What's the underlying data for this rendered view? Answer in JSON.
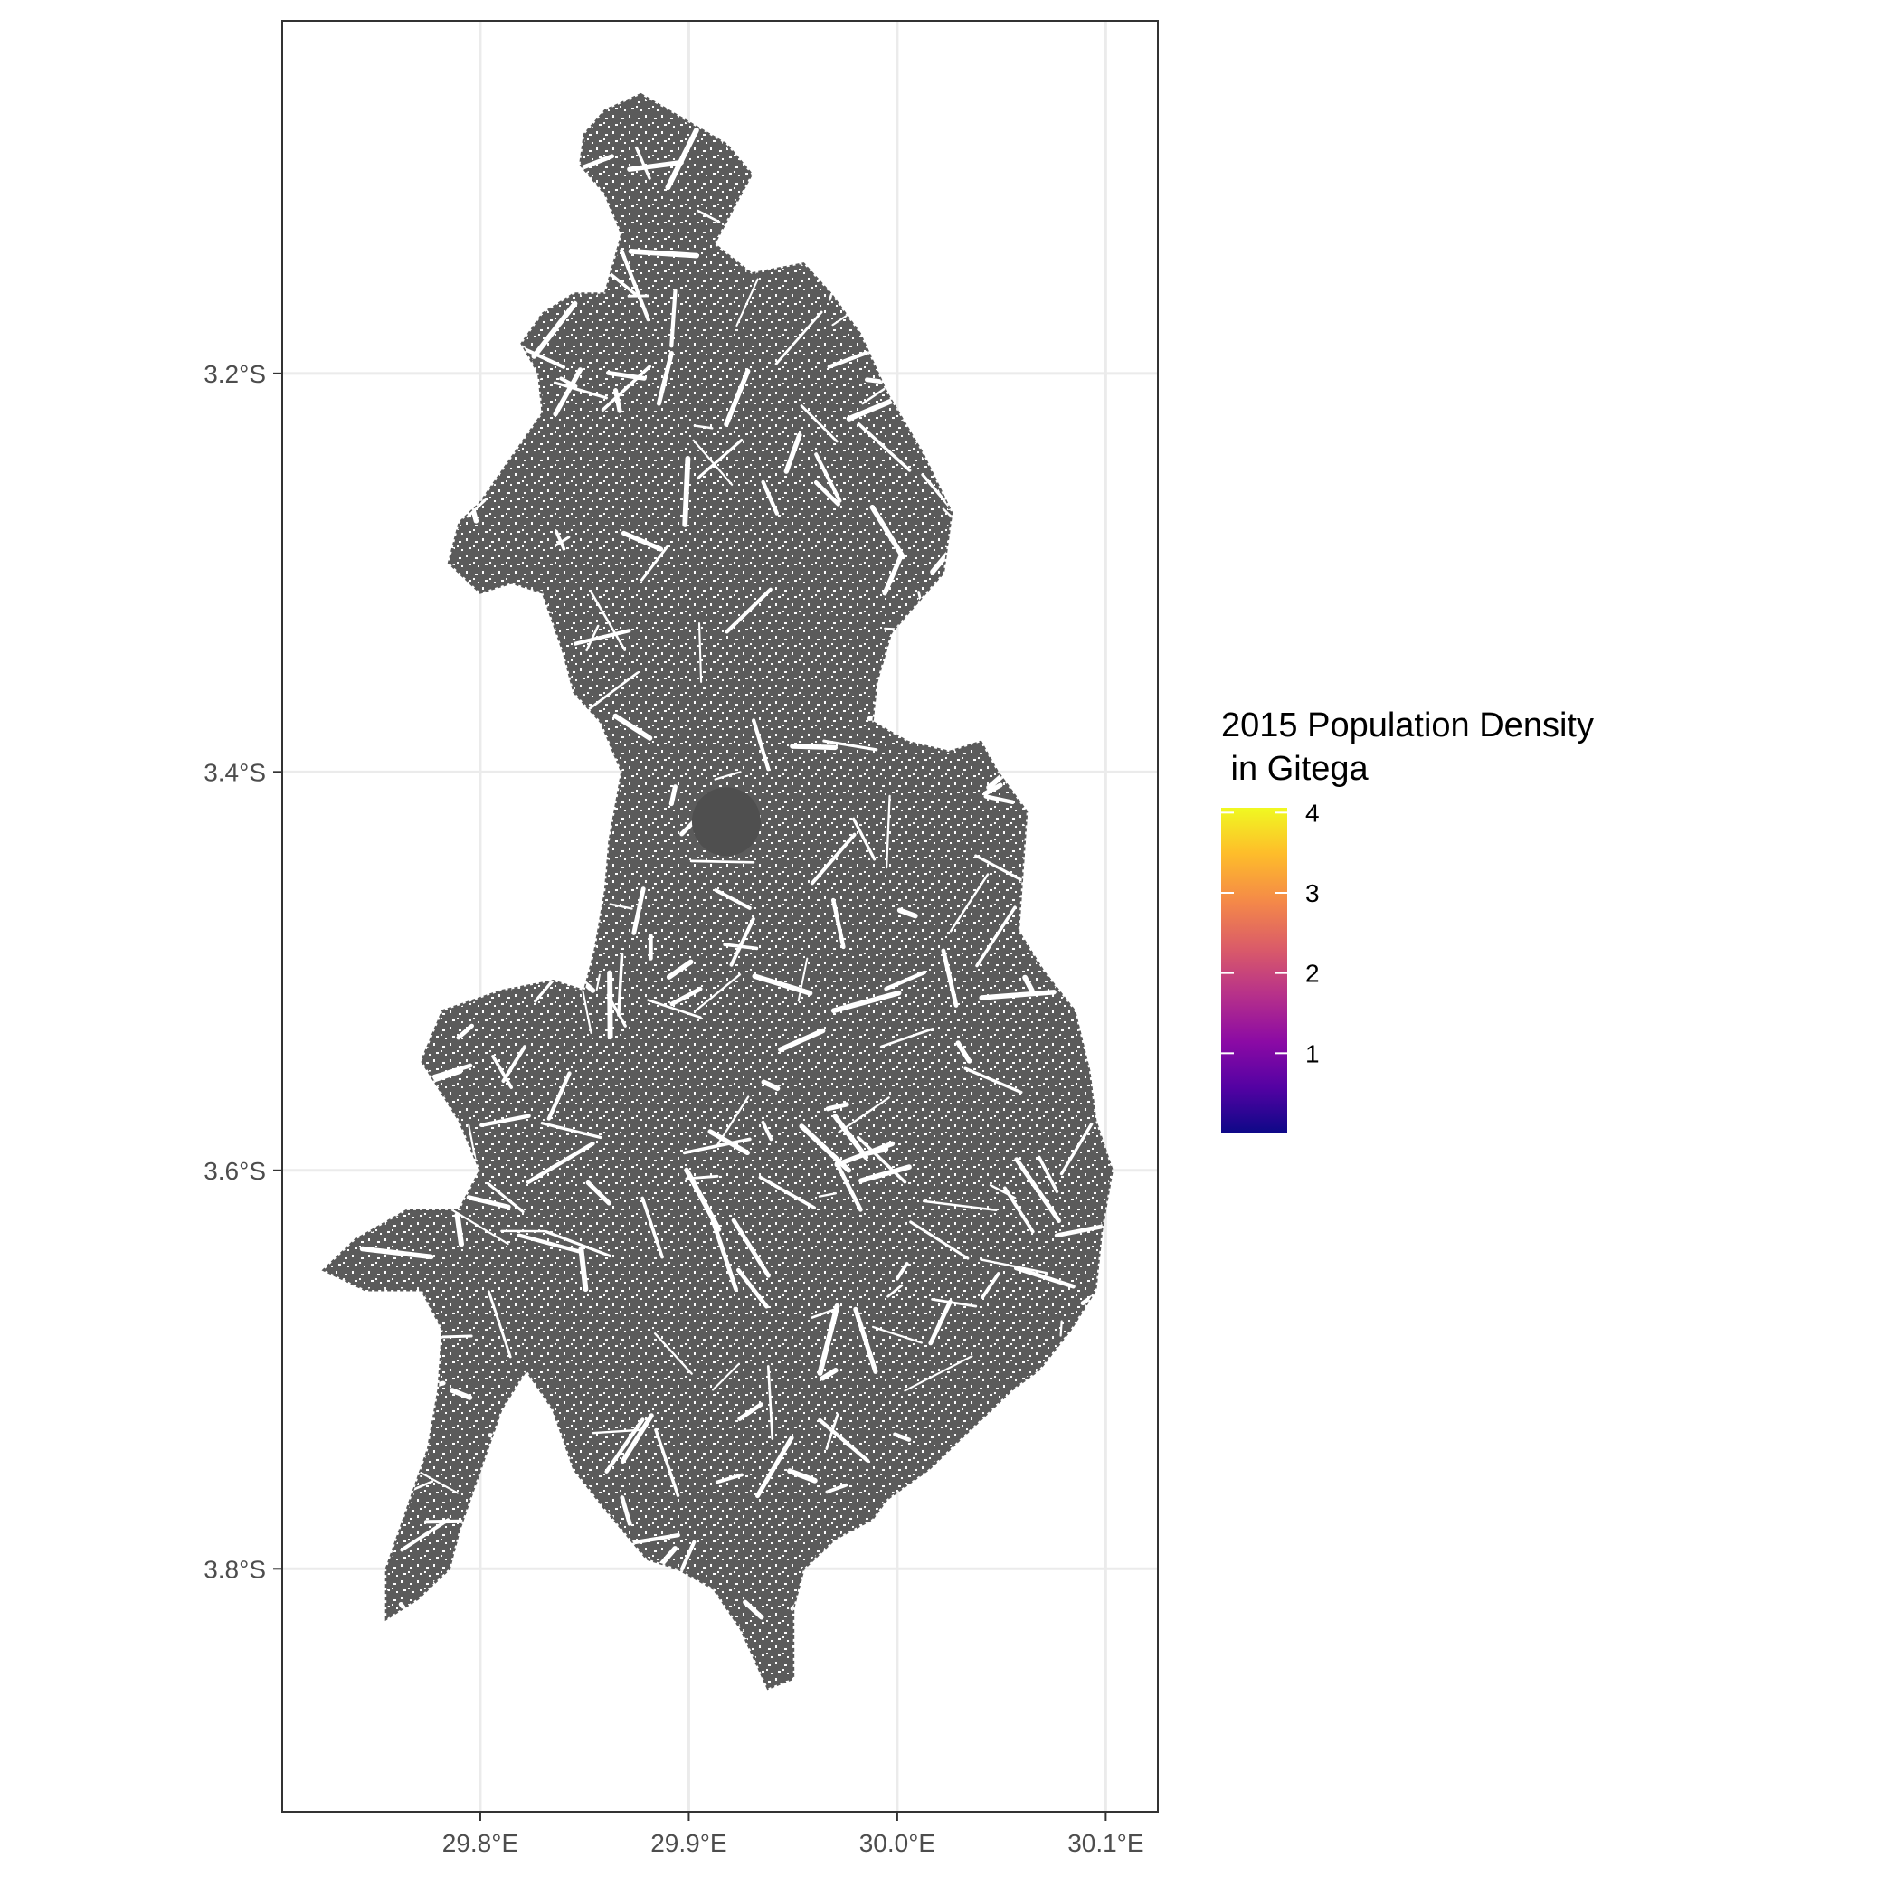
{
  "chart_data": {
    "type": "map",
    "region": "Gitega",
    "x_axis": {
      "ticks": [
        {
          "value": 29.8,
          "label": "29.8°E"
        },
        {
          "value": 29.9,
          "label": "29.9°E"
        },
        {
          "value": 30.0,
          "label": "30.0°E"
        },
        {
          "value": 30.1,
          "label": "30.1°E"
        }
      ],
      "range": [
        29.705,
        30.125
      ]
    },
    "y_axis": {
      "ticks": [
        {
          "value": -3.2,
          "label": "3.2°S"
        },
        {
          "value": -3.4,
          "label": "3.4°S"
        },
        {
          "value": -3.6,
          "label": "3.6°S"
        },
        {
          "value": -3.8,
          "label": "3.8°S"
        }
      ],
      "range": [
        -3.922,
        -3.023
      ]
    },
    "grid": true,
    "legend": {
      "title_line1": "2015 Population Density",
      "title_line2": " in Gitega",
      "placement": "right",
      "scale_min": 0,
      "scale_max": 4.06,
      "ticks": [
        {
          "value": 1,
          "label": "1"
        },
        {
          "value": 2,
          "label": "2"
        },
        {
          "value": 3,
          "label": "3"
        },
        {
          "value": 4,
          "label": "4"
        }
      ],
      "colors": [
        "#0d0887",
        "#5302a3",
        "#8b0aa5",
        "#b83289",
        "#db5c68",
        "#f48849",
        "#febd2a",
        "#f0f921"
      ]
    },
    "fill_color": "#595959",
    "boundary": [
      [
        29.877,
        -3.06
      ],
      [
        29.918,
        -3.085
      ],
      [
        29.93,
        -3.1
      ],
      [
        29.912,
        -3.135
      ],
      [
        29.93,
        -3.15
      ],
      [
        29.955,
        -3.145
      ],
      [
        29.968,
        -3.16
      ],
      [
        29.982,
        -3.18
      ],
      [
        29.995,
        -3.21
      ],
      [
        30.012,
        -3.24
      ],
      [
        30.026,
        -3.27
      ],
      [
        30.022,
        -3.3
      ],
      [
        29.997,
        -3.33
      ],
      [
        29.99,
        -3.355
      ],
      [
        29.988,
        -3.375
      ],
      [
        30.005,
        -3.385
      ],
      [
        30.025,
        -3.39
      ],
      [
        30.04,
        -3.385
      ],
      [
        30.048,
        -3.4
      ],
      [
        30.062,
        -3.42
      ],
      [
        30.06,
        -3.45
      ],
      [
        30.058,
        -3.48
      ],
      [
        30.07,
        -3.5
      ],
      [
        30.085,
        -3.52
      ],
      [
        30.092,
        -3.55
      ],
      [
        30.095,
        -3.575
      ],
      [
        30.103,
        -3.6
      ],
      [
        30.098,
        -3.63
      ],
      [
        30.095,
        -3.66
      ],
      [
        30.083,
        -3.68
      ],
      [
        30.068,
        -3.7
      ],
      [
        30.055,
        -3.71
      ],
      [
        30.035,
        -3.73
      ],
      [
        30.015,
        -3.75
      ],
      [
        29.995,
        -3.765
      ],
      [
        29.988,
        -3.775
      ],
      [
        29.97,
        -3.785
      ],
      [
        29.955,
        -3.8
      ],
      [
        29.95,
        -3.82
      ],
      [
        29.95,
        -3.855
      ],
      [
        29.938,
        -3.86
      ],
      [
        29.925,
        -3.83
      ],
      [
        29.912,
        -3.81
      ],
      [
        29.895,
        -3.8
      ],
      [
        29.88,
        -3.795
      ],
      [
        29.86,
        -3.77
      ],
      [
        29.845,
        -3.75
      ],
      [
        29.835,
        -3.72
      ],
      [
        29.822,
        -3.7
      ],
      [
        29.81,
        -3.72
      ],
      [
        29.8,
        -3.75
      ],
      [
        29.79,
        -3.78
      ],
      [
        29.785,
        -3.8
      ],
      [
        29.77,
        -3.815
      ],
      [
        29.755,
        -3.825
      ],
      [
        29.755,
        -3.8
      ],
      [
        29.765,
        -3.77
      ],
      [
        29.775,
        -3.74
      ],
      [
        29.78,
        -3.71
      ],
      [
        29.782,
        -3.68
      ],
      [
        29.772,
        -3.66
      ],
      [
        29.745,
        -3.66
      ],
      [
        29.725,
        -3.65
      ],
      [
        29.74,
        -3.635
      ],
      [
        29.765,
        -3.62
      ],
      [
        29.79,
        -3.62
      ],
      [
        29.8,
        -3.6
      ],
      [
        29.79,
        -3.575
      ],
      [
        29.772,
        -3.545
      ],
      [
        29.782,
        -3.52
      ],
      [
        29.81,
        -3.51
      ],
      [
        29.835,
        -3.505
      ],
      [
        29.85,
        -3.51
      ],
      [
        29.855,
        -3.49
      ],
      [
        29.86,
        -3.46
      ],
      [
        29.862,
        -3.435
      ],
      [
        29.868,
        -3.4
      ],
      [
        29.858,
        -3.375
      ],
      [
        29.845,
        -3.36
      ],
      [
        29.84,
        -3.34
      ],
      [
        29.83,
        -3.31
      ],
      [
        29.815,
        -3.305
      ],
      [
        29.8,
        -3.31
      ],
      [
        29.785,
        -3.295
      ],
      [
        29.79,
        -3.275
      ],
      [
        29.8,
        -3.265
      ],
      [
        29.81,
        -3.25
      ],
      [
        29.82,
        -3.235
      ],
      [
        29.83,
        -3.22
      ],
      [
        29.828,
        -3.2
      ],
      [
        29.82,
        -3.185
      ],
      [
        29.83,
        -3.17
      ],
      [
        29.845,
        -3.16
      ],
      [
        29.86,
        -3.16
      ],
      [
        29.868,
        -3.13
      ],
      [
        29.86,
        -3.11
      ],
      [
        29.848,
        -3.095
      ],
      [
        29.85,
        -3.08
      ],
      [
        29.86,
        -3.068
      ]
    ]
  }
}
